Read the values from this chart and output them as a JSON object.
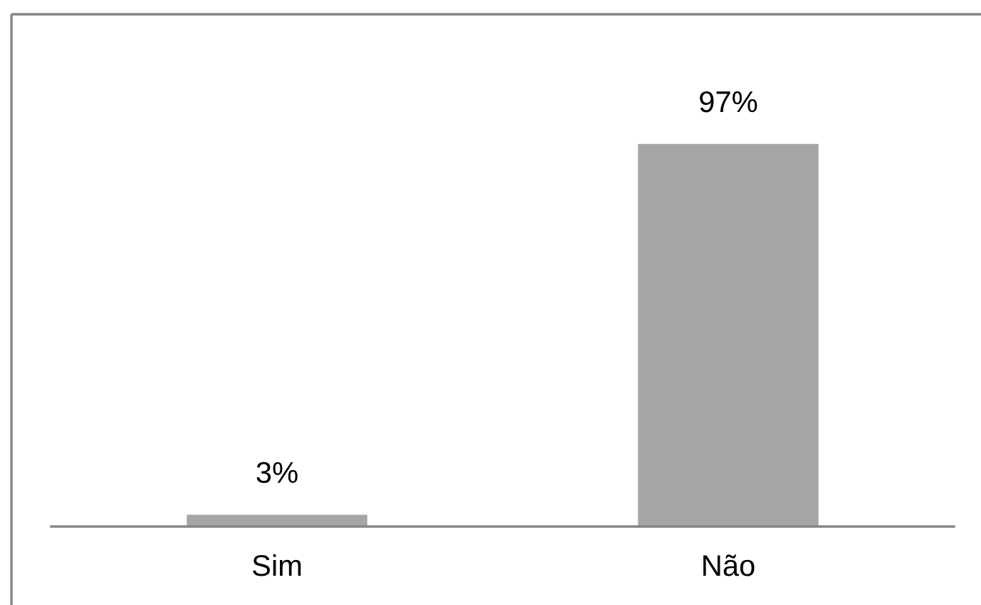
{
  "chart_data": {
    "type": "bar",
    "categories": [
      "Sim",
      "Não"
    ],
    "values": [
      3,
      97
    ],
    "value_labels": [
      "3%",
      "97%"
    ],
    "color": "#a5a5a5"
  }
}
